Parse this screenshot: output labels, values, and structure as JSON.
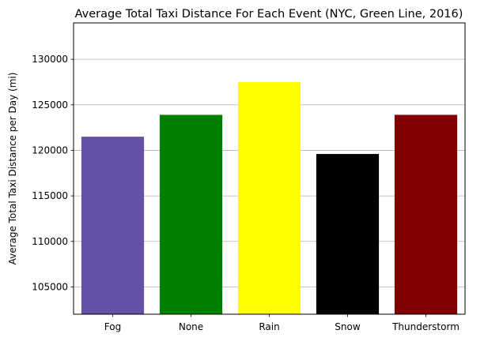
{
  "chart_data": {
    "type": "bar",
    "title": "Average Total Taxi Distance For Each Event (NYC, Green Line, 2016)",
    "xlabel": "",
    "ylabel": "Average Total Taxi Distance per Day (mi)",
    "categories": [
      "Fog",
      "None",
      "Rain",
      "Snow",
      "Thunderstorm"
    ],
    "values": [
      121500,
      123900,
      127500,
      119600,
      123900
    ],
    "colors": [
      "#6651a8",
      "#008000",
      "#ffff00",
      "#000000",
      "#800000"
    ],
    "ylim": [
      102000,
      134000
    ],
    "yticks": [
      105000,
      110000,
      115000,
      120000,
      125000,
      130000
    ],
    "ytick_labels": [
      "105000",
      "110000",
      "115000",
      "120000",
      "125000",
      "130000"
    ],
    "grid": {
      "axis": "y",
      "color": "#b0b0b0"
    },
    "legend": "none"
  }
}
